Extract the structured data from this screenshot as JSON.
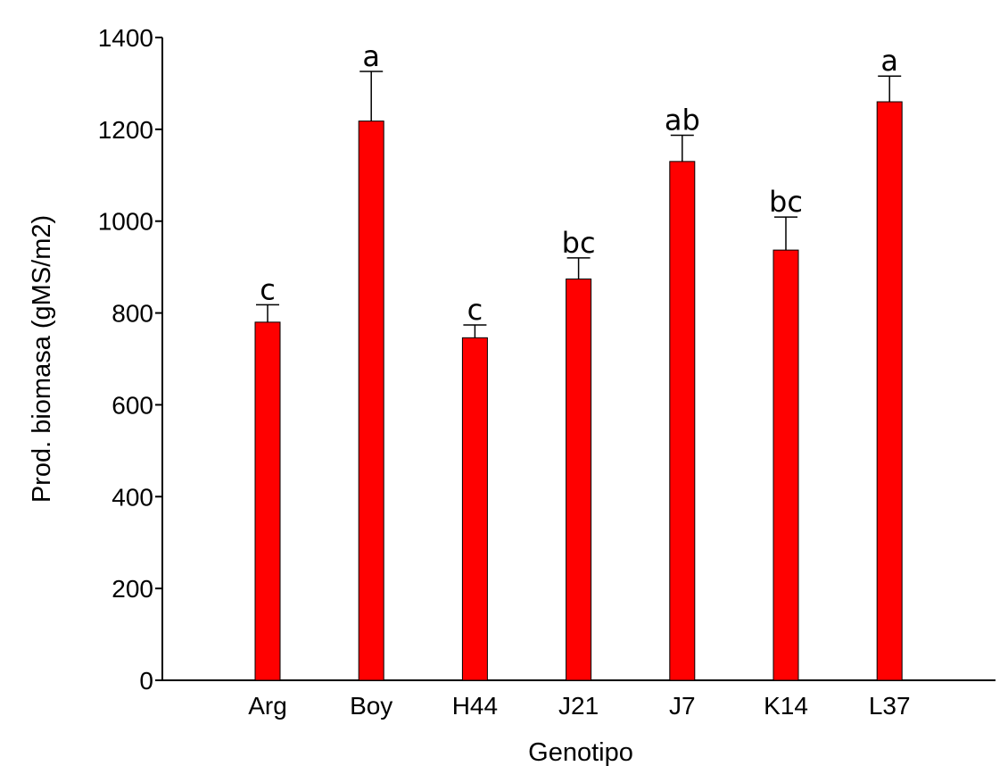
{
  "chart_data": {
    "type": "bar",
    "categories": [
      "Arg",
      "Boy",
      "H44",
      "J21",
      "J7",
      "K14",
      "L37"
    ],
    "values": [
      780,
      1218,
      746,
      874,
      1130,
      937,
      1260
    ],
    "errors": [
      38,
      108,
      28,
      46,
      57,
      72,
      56
    ],
    "significance_letters": [
      "c",
      "a",
      "c",
      "bc",
      "ab",
      "bc",
      "a"
    ],
    "xlabel": "Genotipo",
    "ylabel": "Prod. biomasa (gMS/m2)",
    "ylim": [
      0,
      1400
    ],
    "yticks": [
      0,
      200,
      400,
      600,
      800,
      1000,
      1200,
      1400
    ],
    "grid": false,
    "legend": "none",
    "colors": {
      "bar_fill": "#ff0000",
      "bar_stroke": "#000000",
      "axis": "#000000"
    }
  }
}
